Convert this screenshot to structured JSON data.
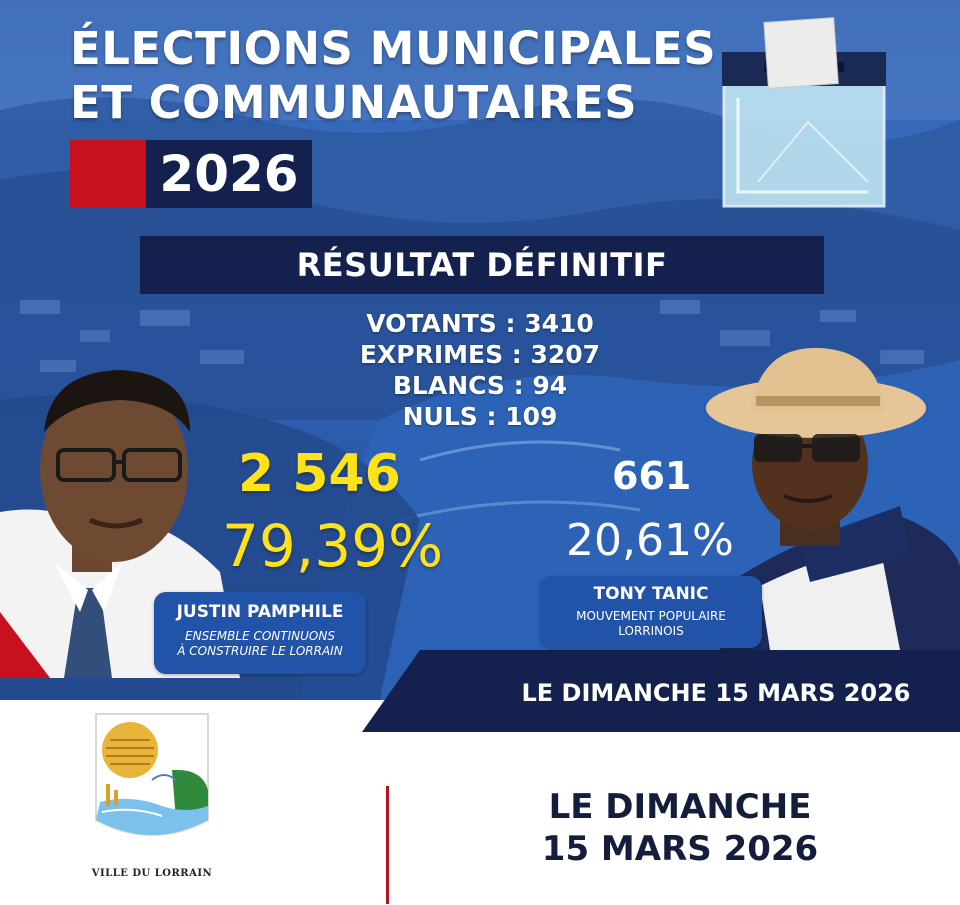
{
  "title": {
    "line1": "ÉLECTIONS MUNICIPALES",
    "line2": "ET COMMUNAUTAIRES",
    "year": "2026"
  },
  "banner": {
    "label": "RÉSULTAT DÉFINITIF"
  },
  "stats": {
    "votants": "VOTANTS : 3410",
    "exprimes": "EXPRIMES : 3207",
    "blancs": "BLANCS : 94",
    "nuls": "NULS : 109"
  },
  "candidates": [
    {
      "votes": "2 546",
      "percent": "79,39%",
      "name": "JUSTIN PAMPHILE",
      "party_line1": "ENSEMBLE CONTINUONS",
      "party_line2": "À CONSTRUIRE LE LORRAIN"
    },
    {
      "votes": "661",
      "percent": "20,61%",
      "name": "TONY TANIC",
      "party_line1": "MOUVEMENT POPULAIRE",
      "party_line2": "LORRINOIS"
    }
  ],
  "date_banner": "LE DIMANCHE 15 MARS 2026",
  "footer": {
    "logo_caption": "VILLE DU LORRAIN",
    "date_line1": "LE DIMANCHE",
    "date_line2": "15 MARS 2026"
  },
  "colors": {
    "navy": "#14204d",
    "red": "#c8101e",
    "yellow": "#ffe21a",
    "card_blue": "#2153a8"
  }
}
